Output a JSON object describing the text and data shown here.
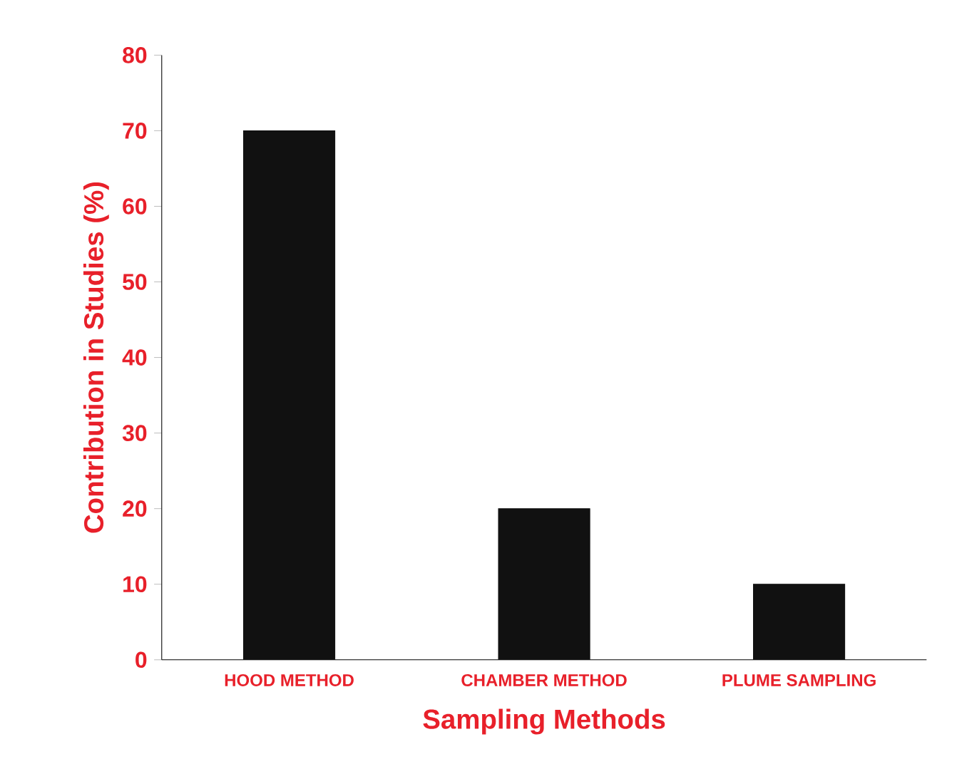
{
  "chart_data": {
    "type": "bar",
    "xlabel": "Sampling Methods",
    "ylabel": "Contribution in Studies (%)",
    "categories": [
      "HOOD METHOD",
      "CHAMBER METHOD",
      "PLUME SAMPLING"
    ],
    "values": [
      70,
      20,
      10
    ],
    "color": "#111111",
    "ylim": [
      0,
      80
    ],
    "yticks": [
      0,
      10,
      20,
      30,
      40,
      50,
      60,
      70,
      80
    ],
    "grid": false
  }
}
